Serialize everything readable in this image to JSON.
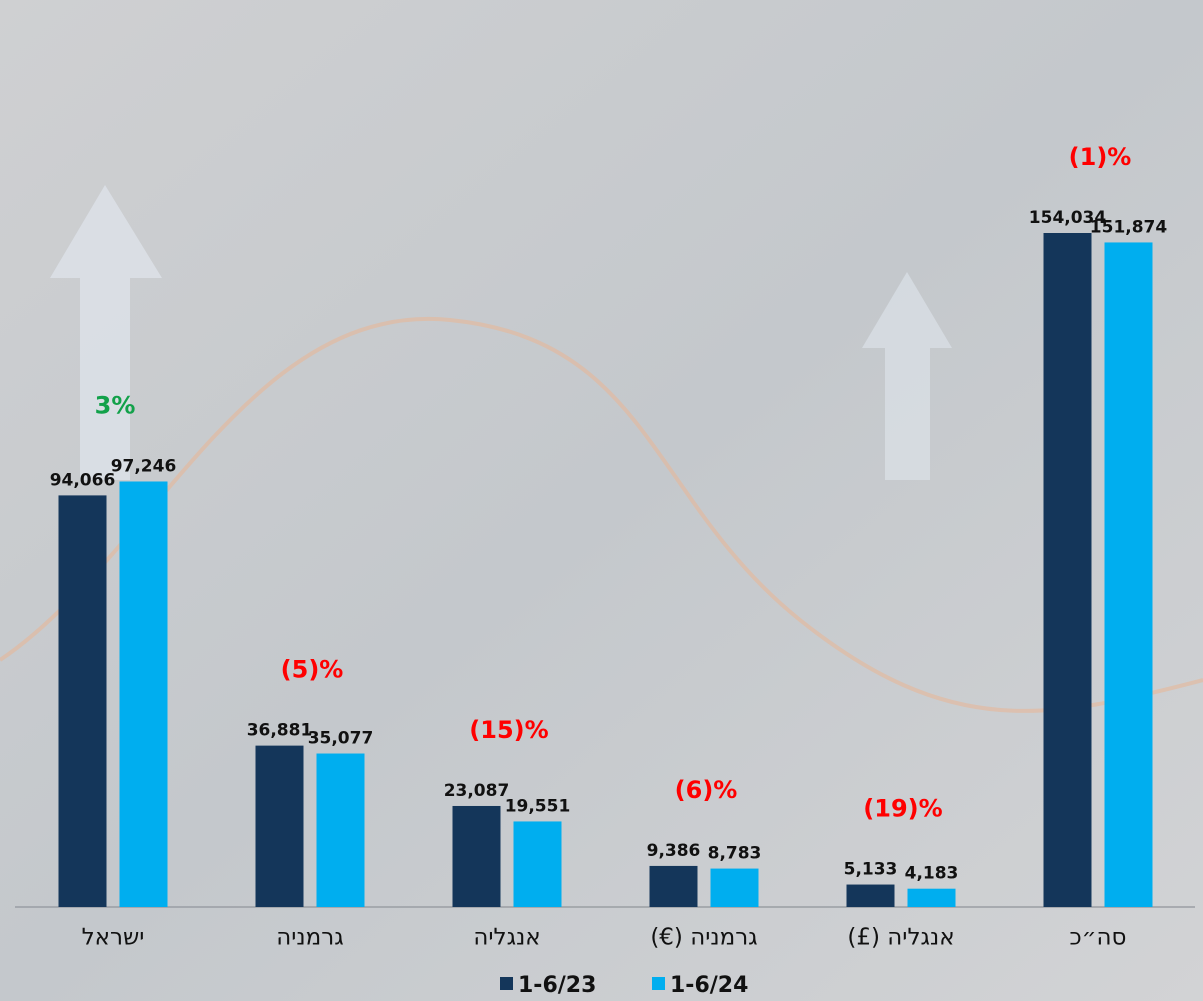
{
  "chart_data": {
    "type": "bar",
    "categories": [
      "ישראל",
      "גרמניה",
      "אנגליה",
      "גרמניה (€)",
      "אנגליה (£)",
      "סה״כ"
    ],
    "series": [
      {
        "name": "1-6/23",
        "color": "#14365a",
        "values": [
          94066,
          36881,
          23087,
          9386,
          5133,
          154034
        ],
        "value_labels": [
          "94,066",
          "36,881",
          "23,087",
          "9,386",
          "5,133",
          "154,034"
        ]
      },
      {
        "name": "1-6/24",
        "color": "#00aeef",
        "values": [
          97246,
          35077,
          19551,
          8783,
          4183,
          151874
        ],
        "value_labels": [
          "97,246",
          "35,077",
          "19,551",
          "8,783",
          "4,183",
          "151,874"
        ]
      }
    ],
    "annotations": [
      {
        "text": "3%",
        "color": "#12a14a"
      },
      {
        "text": "(5)%",
        "color": "#ff0000"
      },
      {
        "text": "(15)%",
        "color": "#ff0000"
      },
      {
        "text": "(6)%",
        "color": "#ff0000"
      },
      {
        "text": "(19)%",
        "color": "#ff0000"
      },
      {
        "text": "(1)%",
        "color": "#ff0000"
      }
    ],
    "legend": "bottom"
  }
}
